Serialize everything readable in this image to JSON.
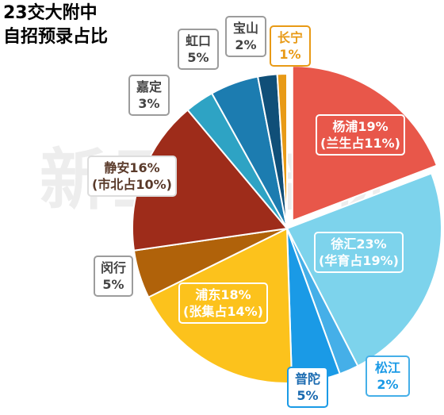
{
  "chart_data": {
    "type": "pie",
    "title_lines": [
      "23交大附中",
      "自招预录占比"
    ],
    "watermark": "新王牌培优",
    "slices": [
      {
        "name": "杨浦",
        "value": 19,
        "label": "杨浦19%",
        "sub": "(兰生占11%)",
        "color": "#e8574a",
        "exploded": true
      },
      {
        "name": "徐汇",
        "value": 23,
        "label": "徐汇23%",
        "sub": "(华育占19%)",
        "color": "#7dd3ec"
      },
      {
        "name": "松江",
        "value": 2,
        "label": "松江",
        "sub": "2%",
        "color": "#45afe8"
      },
      {
        "name": "普陀",
        "value": 5,
        "label": "普陀",
        "sub": "5%",
        "color": "#1a9ae6"
      },
      {
        "name": "浦东",
        "value": 18,
        "label": "浦东18%",
        "sub": "(张集占14%)",
        "color": "#fcc21c"
      },
      {
        "name": "闵行",
        "value": 5,
        "label": "闵行",
        "sub": "5%",
        "color": "#b0620a"
      },
      {
        "name": "静安",
        "value": 16,
        "label": "静安16%",
        "sub": "(市北占10%)",
        "color": "#9e2c1a"
      },
      {
        "name": "嘉定",
        "value": 3,
        "label": "嘉定",
        "sub": "3%",
        "color": "#2ea3c4"
      },
      {
        "name": "虹口",
        "value": 5,
        "label": "虹口",
        "sub": "5%",
        "color": "#1c7cb0"
      },
      {
        "name": "宝山",
        "value": 2,
        "label": "宝山",
        "sub": "2%",
        "color": "#104f78"
      },
      {
        "name": "长宁",
        "value": 1,
        "label": "长宁",
        "sub": "1%",
        "color": "#e89a16"
      }
    ]
  }
}
